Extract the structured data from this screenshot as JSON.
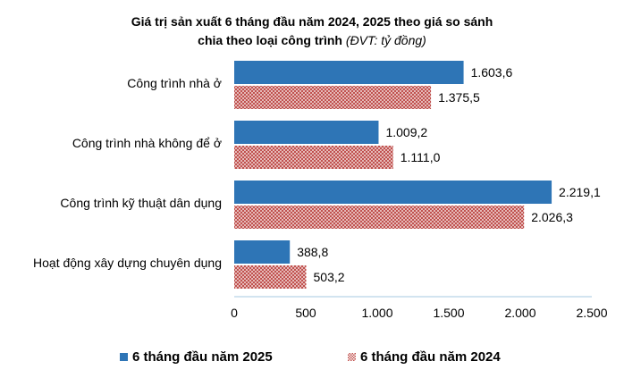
{
  "chart_data": {
    "type": "bar",
    "orientation": "horizontal",
    "title_line1": "Giá trị sản xuất 6 tháng đầu năm 2024, 2025 theo giá so sánh",
    "title_line2": "chia theo loại công trình",
    "title_unit": "(ĐVT: tỷ đồng)",
    "categories": [
      "Công trình nhà ở",
      "Công trình nhà không để ở",
      "Công trình kỹ thuật dân dụng",
      "Hoạt động xây dựng chuyên dụng"
    ],
    "series": [
      {
        "name": "6 tháng đầu năm 2025",
        "color": "#2e75b6",
        "pattern": "solid",
        "values": [
          1603.6,
          1009.2,
          2219.1,
          388.8
        ],
        "labels": [
          "1.603,6",
          "1.009,2",
          "2.219,1",
          "388,8"
        ]
      },
      {
        "name": "6 tháng đầu năm 2024",
        "color": "#c0504d",
        "pattern": "crosshatch",
        "values": [
          1375.5,
          1111.0,
          2026.3,
          503.2
        ],
        "labels": [
          "1.375,5",
          "1.111,0",
          "2.026,3",
          "503,2"
        ]
      }
    ],
    "xlim": [
      0,
      2500
    ],
    "xticks": [
      0,
      500,
      1000,
      1500,
      2000,
      2500
    ],
    "xtick_labels": [
      "0",
      "500",
      "1.000",
      "1.500",
      "2.000",
      "2.500"
    ],
    "grid": false,
    "legend_position": "bottom"
  }
}
